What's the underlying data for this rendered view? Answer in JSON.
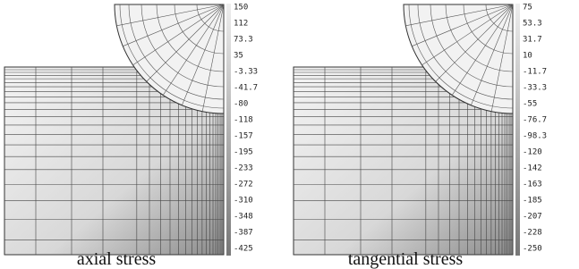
{
  "panels": [
    {
      "caption": "axial stress",
      "colorbar_labels": [
        "150",
        "112",
        "73.3",
        "35",
        "-3.33",
        "-41.7",
        "-80",
        "-118",
        "-157",
        "-195",
        "-233",
        "-272",
        "-310",
        "-348",
        "-387",
        "-425"
      ]
    },
    {
      "caption": "tangential stress",
      "colorbar_labels": [
        "75",
        "53.3",
        "31.7",
        "10",
        "-11.7",
        "-33.3",
        "-55",
        "-76.7",
        "-98.3",
        "-120",
        "-142",
        "-163",
        "-185",
        "-207",
        "-228",
        "-250"
      ]
    }
  ]
}
